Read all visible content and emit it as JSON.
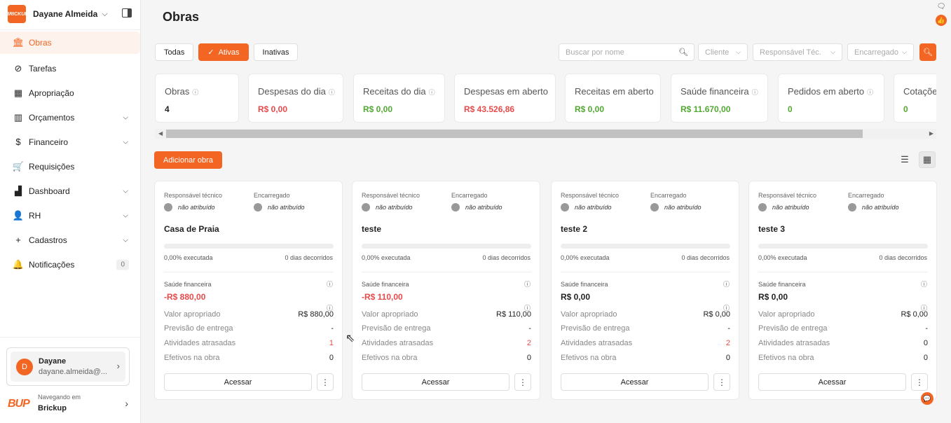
{
  "sidebar": {
    "brand_logo": "BRICKUP",
    "user_name": "Dayane Almeida",
    "items": [
      {
        "label": "Obras",
        "icon": "building-icon"
      },
      {
        "label": "Tarefas",
        "icon": "check-circle-icon"
      },
      {
        "label": "Apropriação",
        "icon": "grid-icon"
      },
      {
        "label": "Orçamentos",
        "icon": "barcode-icon"
      },
      {
        "label": "Financeiro",
        "icon": "dollar-icon"
      },
      {
        "label": "Requisições",
        "icon": "cart-icon"
      },
      {
        "label": "Dashboard",
        "icon": "chart-icon"
      },
      {
        "label": "RH",
        "icon": "person-icon"
      },
      {
        "label": "Cadastros",
        "icon": "plus-icon"
      },
      {
        "label": "Notificações",
        "icon": "bell-icon",
        "badge": "0"
      }
    ],
    "user_box": {
      "initial": "D",
      "name": "Dayane",
      "email": "dayane.almeida@..."
    },
    "navigating_label": "Navegando em",
    "navigating_value": "Brickup",
    "footer_logo": "BUP"
  },
  "page": {
    "title": "Obras"
  },
  "filters": {
    "tabs": [
      "Todas",
      "Ativas",
      "Inativas"
    ],
    "active_check": "✓",
    "search_placeholder": "Buscar por nome",
    "client_placeholder": "Cliente",
    "responsible_placeholder": "Responsável Téc.",
    "foreman_placeholder": "Encarregado"
  },
  "stats": [
    {
      "label": "Obras",
      "value": "4",
      "color": "dark",
      "info": true
    },
    {
      "label": "Despesas do dia",
      "value": "R$ 0,00",
      "color": "red",
      "info": true
    },
    {
      "label": "Receitas do dia",
      "value": "R$ 0,00",
      "color": "green",
      "info": true
    },
    {
      "label": "Despesas em aberto",
      "value": "R$ 43.526,86",
      "color": "red",
      "info": false
    },
    {
      "label": "Receitas em aberto",
      "value": "R$ 0,00",
      "color": "green",
      "info": false
    },
    {
      "label": "Saúde financeira",
      "value": "R$ 11.670,00",
      "color": "green",
      "info": true
    },
    {
      "label": "Pedidos em aberto",
      "value": "0",
      "color": "green",
      "info": true
    },
    {
      "label": "Cotaçõe",
      "value": "0",
      "color": "green",
      "info": false
    }
  ],
  "actions": {
    "add_label": "Adicionar obra"
  },
  "card_labels": {
    "responsible": "Responsável técnico",
    "foreman": "Encarregado",
    "unassigned": "não atribuído",
    "financial_health": "Saúde financeira",
    "appropriated": "Valor apropriado",
    "delivery": "Previsão de entrega",
    "late_activities": "Atividades atrasadas",
    "staff": "Efetivos na obra",
    "access": "Acessar",
    "more": "⋮"
  },
  "cards": [
    {
      "name": "Casa de Praia",
      "executed": "0,00% executada",
      "days": "0 dias decorridos",
      "health": "-R$ 880,00",
      "health_negative": true,
      "appropriated": "R$ 880,00",
      "delivery": "-",
      "late": "1",
      "late_red": true,
      "staff": "0"
    },
    {
      "name": "teste",
      "executed": "0,00% executada",
      "days": "0 dias decorridos",
      "health": "-R$ 110,00",
      "health_negative": true,
      "appropriated": "R$ 110,00",
      "delivery": "-",
      "late": "2",
      "late_red": true,
      "staff": "0"
    },
    {
      "name": "teste 2",
      "executed": "0,00% executada",
      "days": "0 dias decorridos",
      "health": "R$ 0,00",
      "health_negative": false,
      "appropriated": "R$ 0,00",
      "delivery": "-",
      "late": "2",
      "late_red": true,
      "staff": "0"
    },
    {
      "name": "teste 3",
      "executed": "0,00% executada",
      "days": "0 dias decorridos",
      "health": "R$ 0,00",
      "health_negative": false,
      "appropriated": "R$ 0,00",
      "delivery": "-",
      "late": "0",
      "late_red": false,
      "staff": "0"
    }
  ],
  "colors": {
    "accent": "#f26522",
    "negative": "#e84a4a",
    "positive": "#52a832"
  }
}
